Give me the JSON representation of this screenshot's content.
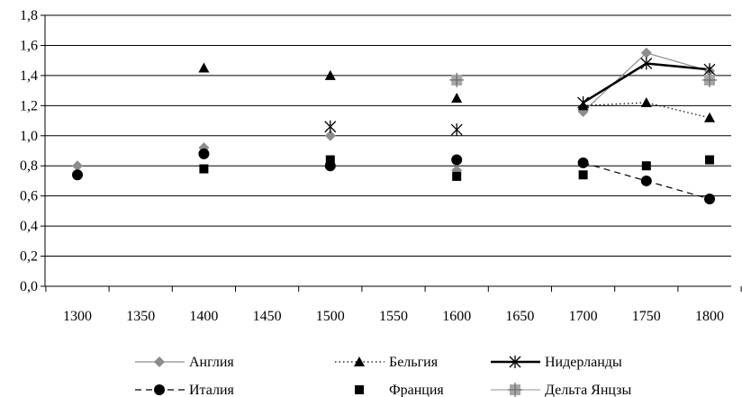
{
  "chart_data": {
    "type": "line",
    "title": "",
    "xlabel": "",
    "ylabel": "",
    "x_ticks": [
      "1300",
      "1350",
      "1400",
      "1450",
      "1500",
      "1550",
      "1600",
      "1650",
      "1700",
      "1750",
      "1800"
    ],
    "y_ticks": [
      "0,0",
      "0,2",
      "0,4",
      "0,6",
      "0,8",
      "1,0",
      "1,2",
      "1,4",
      "1,6",
      "1,8"
    ],
    "xlim": [
      1300,
      1800
    ],
    "ylim": [
      0,
      1.8
    ],
    "grid": "horizontal",
    "legend_position": "bottom",
    "series": [
      {
        "name": "Англия",
        "color": "#8c8c8c",
        "marker": "diamond",
        "line": "solid-thin",
        "x": [
          1300,
          1400,
          1500,
          1600,
          1700,
          1750,
          1800
        ],
        "y": [
          0.8,
          0.92,
          1.0,
          0.77,
          1.16,
          1.55,
          1.43
        ],
        "connected_from": 1700
      },
      {
        "name": "Бельгия",
        "color": "#000000",
        "marker": "triangle",
        "line": "dotted",
        "x": [
          1400,
          1500,
          1600,
          1700,
          1750,
          1800
        ],
        "y": [
          1.45,
          1.4,
          1.25,
          1.2,
          1.22,
          1.12
        ],
        "connected_from": 1700
      },
      {
        "name": "Нидерланды",
        "color": "#000000",
        "marker": "asterisk",
        "line": "solid-thick",
        "x": [
          1500,
          1600,
          1700,
          1750,
          1800
        ],
        "y": [
          1.06,
          1.04,
          1.22,
          1.48,
          1.44
        ],
        "connected_from": 1700
      },
      {
        "name": "Италия",
        "color": "#000000",
        "marker": "circle",
        "line": "dashed",
        "x": [
          1300,
          1400,
          1500,
          1600,
          1700,
          1750,
          1800
        ],
        "y": [
          0.74,
          0.88,
          0.8,
          0.84,
          0.82,
          0.7,
          0.58
        ],
        "connected_from": 1700
      },
      {
        "name": "Франция",
        "color": "#000000",
        "marker": "square",
        "line": "none",
        "x": [
          1400,
          1500,
          1600,
          1700,
          1750,
          1800
        ],
        "y": [
          0.78,
          0.84,
          0.73,
          0.74,
          0.8,
          0.84
        ],
        "connected_from": null
      },
      {
        "name": "Дельта Янцзы",
        "color": "#a6a6a6",
        "marker": "plus-square",
        "line": "solid-thin",
        "x": [
          1600,
          1800
        ],
        "y": [
          1.37,
          1.37
        ],
        "connected_from": null
      }
    ]
  }
}
